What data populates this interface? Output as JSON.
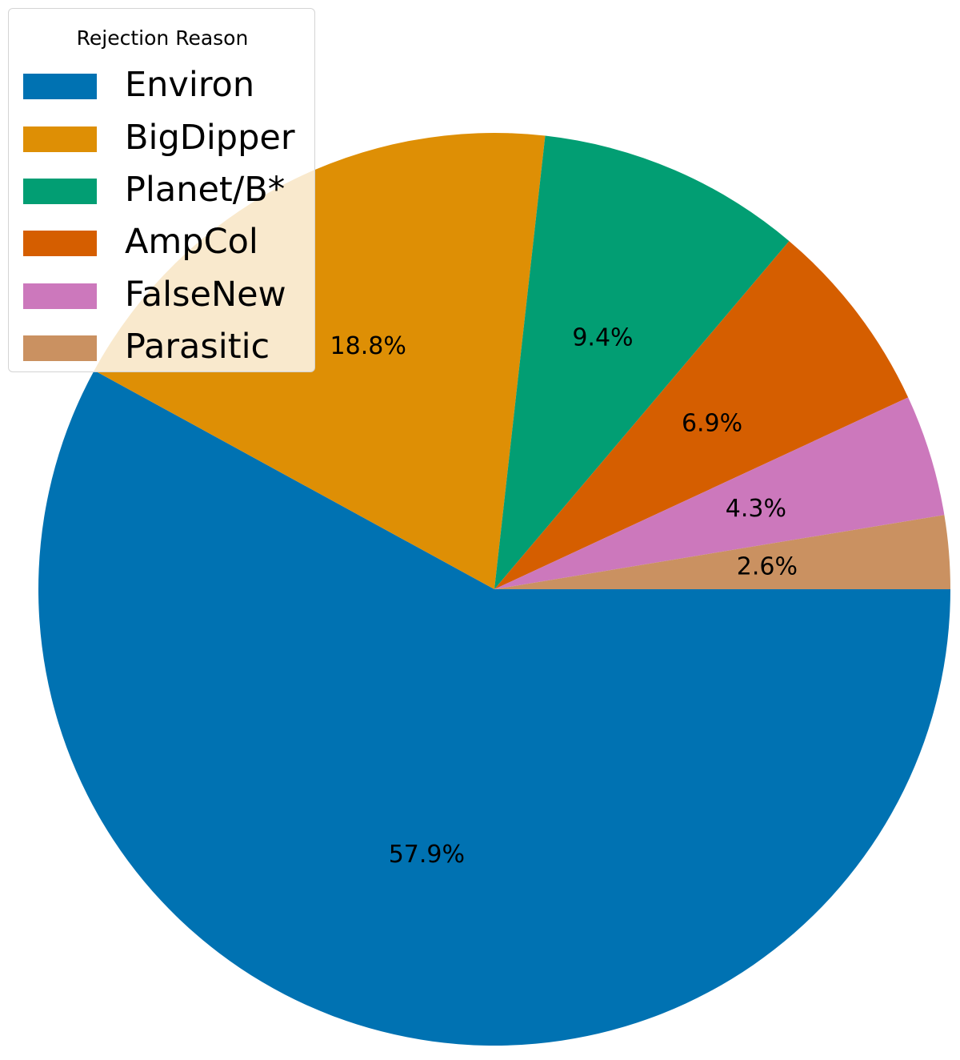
{
  "chart_data": {
    "type": "pie",
    "title": "",
    "legend": {
      "title": "Rejection Reason",
      "placement": "top-left"
    },
    "slices": [
      {
        "label": "Environ",
        "value": 57.9,
        "pct_label": "57.9%",
        "color": "#0072b2"
      },
      {
        "label": "BigDipper",
        "value": 18.8,
        "pct_label": "18.8%",
        "color": "#de8f05"
      },
      {
        "label": "Planet/B*",
        "value": 9.4,
        "pct_label": "9.4%",
        "color": "#029e73"
      },
      {
        "label": "AmpCol",
        "value": 6.9,
        "pct_label": "6.9%",
        "color": "#d55e00"
      },
      {
        "label": "FalseNew",
        "value": 4.3,
        "pct_label": "4.3%",
        "color": "#cc78bc"
      },
      {
        "label": "Parasitic",
        "value": 2.6,
        "pct_label": "2.6%",
        "color": "#ca9161"
      }
    ]
  }
}
